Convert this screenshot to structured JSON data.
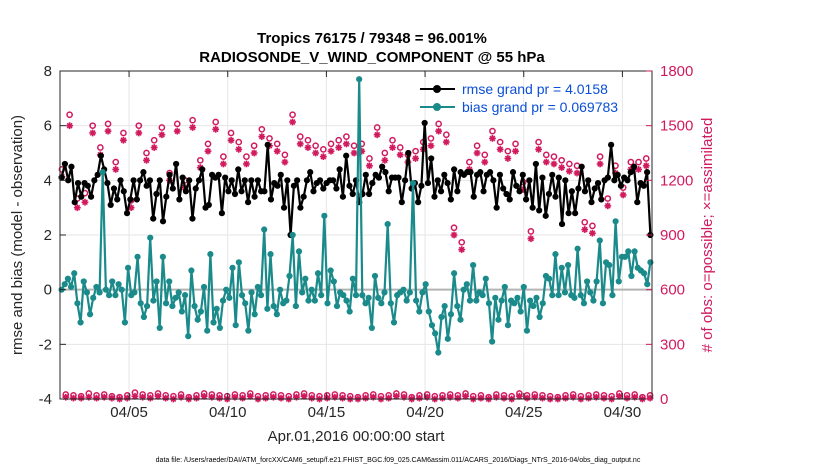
{
  "chart_data": {
    "type": "line",
    "title_line1": "Tropics 76175 / 79348 = 96.001%",
    "title_line2": "RADIOSONDE_V_WIND_COMPONENT @ 55 hPa",
    "xlabel": "Apr.01,2016 00:00:00 start",
    "ylabel_left": "rmse and bias (model - observation)",
    "ylabel_right": "# of obs: o=possible; ×=assimilated",
    "x_range_days": [
      0.5,
      30.5
    ],
    "x_ticks": [
      {
        "day": 4,
        "label": "04/05"
      },
      {
        "day": 9,
        "label": "04/10"
      },
      {
        "day": 14,
        "label": "04/15"
      },
      {
        "day": 19,
        "label": "04/20"
      },
      {
        "day": 24,
        "label": "04/25"
      },
      {
        "day": 29,
        "label": "04/30"
      }
    ],
    "ylim_left": [
      -4,
      8
    ],
    "yticks_left": [
      -4,
      -2,
      0,
      2,
      4,
      6,
      8
    ],
    "ylim_right": [
      0,
      1800
    ],
    "yticks_right": [
      0,
      300,
      600,
      900,
      1200,
      1500,
      1800
    ],
    "footnote": "data file: /Users/raeder/DAI/ATM_forcXX/CAM6_setup/f.e21.FHIST_BGC.f09_025.CAM6assim.011/ACARS_2016/Diags_NTrS_2016-04/obs_diag_output.nc",
    "colors": {
      "rmse": "#000000",
      "bias": "#1a8a8a",
      "obs": "#d11a5e",
      "legend_text": "#0a4fd6",
      "zero_line": "#b3b3b3"
    },
    "series": [
      {
        "name": "rmse grand pr = 4.0158",
        "values": [
          4.1,
          4.6,
          4.0,
          4.5,
          3.2,
          3.9,
          3.4,
          3.9,
          3.8,
          3.4,
          4.0,
          4.2,
          4.9,
          4.4,
          3.9,
          3.1,
          3.7,
          3.3,
          4.0,
          3.6,
          2.8,
          3.3,
          4.0,
          3.3,
          4.0,
          4.3,
          3.8,
          4.0,
          2.6,
          3.5,
          4.0,
          2.5,
          3.4,
          4.2,
          3.7,
          4.6,
          3.3,
          4.1,
          3.6,
          4.0,
          2.6,
          3.7,
          4.0,
          4.4,
          3.0,
          3.1,
          4.2,
          4.1,
          4.2,
          2.8,
          4.1,
          3.6,
          4.0,
          3.5,
          4.4,
          3.6,
          4.0,
          3.2,
          4.0,
          3.4,
          4.0,
          3.6,
          3.6,
          5.3,
          3.3,
          3.9,
          3.8,
          4.2,
          3.0,
          4.0,
          2.0,
          3.8,
          4.0,
          3.0,
          3.4,
          4.0,
          4.3,
          3.6,
          3.9,
          4.0,
          3.7,
          3.9,
          4.0,
          4.0,
          3.7,
          4.4,
          3.4,
          4.9,
          3.8,
          3.5,
          4.0,
          3.2,
          3.5,
          4.2,
          3.5,
          3.9,
          4.2,
          4.1,
          4.5,
          4.3,
          3.6,
          4.1,
          4.1,
          4.1,
          3.2,
          4.0,
          5.0,
          3.7,
          3.9,
          3.2,
          3.8,
          6.1,
          3.9,
          4.8,
          3.4,
          4.0,
          3.6,
          4.2,
          3.9,
          3.3,
          4.4,
          3.6,
          4.3,
          4.2,
          4.3,
          4.3,
          3.4,
          4.2,
          4.3,
          3.6,
          4.2,
          4.3,
          4.0,
          3.0,
          4.2,
          3.7,
          3.5,
          3.3,
          4.3,
          3.8,
          3.6,
          4.2,
          3.3,
          4.0,
          3.0,
          4.6,
          2.9,
          4.1,
          2.7,
          3.5,
          4.2,
          3.4,
          4.1,
          2.4,
          4.0,
          2.8,
          3.6,
          2.8,
          3.7,
          4.5,
          3.6,
          4.0,
          3.2,
          3.7,
          3.9,
          3.3,
          4.0,
          4.1,
          5.3,
          4.0,
          4.2,
          3.8,
          4.1,
          4.0,
          4.3,
          4.5,
          3.2,
          3.9,
          3.8,
          4.3,
          2.0
        ],
        "markers": "filled dot",
        "axis": "left"
      },
      {
        "name": "bias grand pr = 0.069783",
        "values": [
          0.0,
          0.2,
          0.4,
          0.1,
          0.6,
          -0.5,
          -1.2,
          0.3,
          -0.1,
          -0.9,
          -0.3,
          0.1,
          -0.1,
          4.3,
          0.0,
          -0.2,
          0.3,
          -0.2,
          0.2,
          0.0,
          -1.2,
          0.8,
          -0.2,
          -0.1,
          1.2,
          -0.5,
          -1.0,
          -0.6,
          1.9,
          -0.4,
          0.3,
          -1.4,
          1.2,
          -0.5,
          0.3,
          -0.6,
          -0.3,
          -0.1,
          -0.8,
          -0.2,
          -1.7,
          0.7,
          -0.6,
          -1.1,
          -0.8,
          0.1,
          -1.5,
          1.3,
          -1.2,
          -0.7,
          -1.4,
          -0.4,
          0.0,
          -0.3,
          0.8,
          -1.3,
          1.0,
          -0.2,
          -0.5,
          -1.5,
          -0.1,
          -0.9,
          0.1,
          -0.2,
          2.2,
          -0.7,
          1.3,
          -0.6,
          -0.9,
          0.0,
          -0.5,
          -0.4,
          0.5,
          2.0,
          -0.6,
          1.4,
          -0.1,
          0.4,
          -0.4,
          0.0,
          -0.4,
          0.6,
          -0.2,
          2.7,
          -0.5,
          0.7,
          0.3,
          -0.6,
          -0.1,
          -0.2,
          -0.4,
          -0.8,
          0.4,
          -0.2,
          7.7,
          -0.2,
          -0.5,
          -0.3,
          -1.4,
          0.5,
          -0.3,
          -0.5,
          -0.1,
          2.4,
          -0.5,
          -1.2,
          -0.2,
          -0.1,
          0.0,
          -0.4,
          -0.1,
          3.9,
          -0.4,
          -0.8,
          -0.1,
          0.2,
          -0.8,
          -1.3,
          -1.6,
          -2.3,
          -1.0,
          -0.6,
          -1.8,
          -0.9,
          0.6,
          -0.6,
          -1.1,
          0.0,
          0.2,
          -0.4,
          0.9,
          -0.4,
          -0.1,
          -0.2,
          0.4,
          -0.5,
          -1.9,
          -0.3,
          -1.1,
          -0.4,
          0.1,
          -1.3,
          -0.4,
          -0.5,
          -0.3,
          -0.8,
          0.1,
          -1.5,
          -0.4,
          -0.6,
          -0.3,
          -1.0,
          -0.5,
          0.5,
          0.4,
          -0.2,
          1.3,
          -0.2,
          0.8,
          -0.1,
          0.9,
          -0.2,
          -0.3,
          1.5,
          -0.2,
          -0.5,
          0.3,
          -0.1,
          -0.4,
          0.3,
          1.8,
          -0.5,
          1.0,
          0.9,
          -0.2,
          2.5,
          0.3,
          1.2,
          1.2,
          1.4,
          0.5,
          1.4,
          0.8,
          0.7,
          0.6,
          0.2,
          1.0
        ],
        "markers": "filled dot",
        "axis": "left"
      },
      {
        "name": "possible",
        "marker": "open circle",
        "axis": "right",
        "values": [
          1260,
          25,
          1560,
          20,
          1100,
          15,
          1130,
          30,
          1500,
          20,
          1380,
          25,
          1510,
          15,
          1300,
          10,
          1460,
          20,
          1090,
          35,
          1500,
          25,
          1350,
          20,
          1420,
          30,
          1490,
          20,
          1240,
          15,
          1510,
          25,
          1200,
          10,
          1530,
          20,
          1310,
          30,
          1400,
          25,
          1520,
          20,
          1330,
          15,
          1460,
          25,
          1410,
          20,
          1330,
          30,
          1390,
          15,
          1480,
          20,
          1430,
          25,
          1400,
          20,
          1340,
          15,
          1560,
          25,
          1440,
          30,
          1420,
          20,
          1390,
          15,
          1370,
          20,
          1400,
          25,
          1420,
          20,
          1440,
          15,
          1390,
          10,
          1400,
          20,
          1320,
          25,
          1490,
          15,
          1350,
          20,
          1420,
          30,
          1380,
          25,
          1340,
          10,
          1360,
          20,
          1410,
          25,
          1430,
          15,
          1510,
          20,
          1450,
          25,
          940,
          20,
          860,
          30,
          1300,
          15,
          1390,
          20,
          1340,
          10,
          1470,
          25,
          1410,
          20,
          1360,
          15,
          1400,
          30,
          1190,
          20,
          920,
          25,
          1410,
          20,
          1340,
          15,
          1330,
          10,
          1310,
          20,
          1290,
          25,
          1280,
          15,
          970,
          20,
          950,
          25,
          1330,
          20,
          1100,
          15,
          1280,
          30,
          1160,
          20,
          1300,
          25,
          1300,
          10,
          1320,
          20
        ]
      },
      {
        "name": "assimilated",
        "marker": "asterisk",
        "axis": "right",
        "values": [
          1220,
          10,
          1500,
          5,
          1050,
          5,
          1080,
          10,
          1460,
          5,
          1340,
          10,
          1470,
          5,
          1260,
          0,
          1420,
          5,
          1050,
          15,
          1460,
          10,
          1310,
          5,
          1380,
          15,
          1450,
          5,
          1200,
          0,
          1470,
          10,
          1160,
          0,
          1490,
          5,
          1270,
          15,
          1360,
          10,
          1480,
          5,
          1290,
          0,
          1420,
          10,
          1370,
          5,
          1290,
          15,
          1350,
          0,
          1440,
          5,
          1390,
          10,
          1360,
          5,
          1300,
          0,
          1520,
          10,
          1400,
          15,
          1380,
          5,
          1350,
          0,
          1330,
          5,
          1360,
          10,
          1380,
          5,
          1400,
          0,
          1350,
          0,
          1360,
          5,
          1280,
          10,
          1450,
          0,
          1310,
          5,
          1380,
          15,
          1340,
          10,
          1300,
          0,
          1320,
          5,
          1370,
          10,
          1390,
          0,
          1470,
          5,
          1410,
          10,
          900,
          5,
          820,
          15,
          1260,
          0,
          1350,
          5,
          1300,
          0,
          1430,
          10,
          1370,
          5,
          1320,
          0,
          1360,
          15,
          1150,
          5,
          880,
          10,
          1370,
          5,
          1300,
          0,
          1290,
          0,
          1270,
          5,
          1250,
          10,
          1240,
          0,
          930,
          5,
          910,
          10,
          1290,
          5,
          1060,
          0,
          1240,
          15,
          1120,
          5,
          1260,
          10,
          1260,
          0,
          1280,
          5
        ]
      }
    ]
  }
}
